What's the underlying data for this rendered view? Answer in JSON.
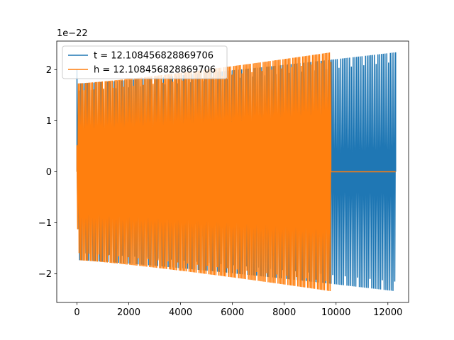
{
  "chart_data": {
    "type": "line",
    "title": "",
    "xlabel": "",
    "ylabel": "",
    "y_offset_text": "1e−22",
    "xlim": [
      -780,
      12800
    ],
    "ylim": [
      -2.56,
      2.56
    ],
    "x_ticks": [
      0,
      2000,
      4000,
      6000,
      8000,
      10000,
      12000
    ],
    "x_tick_labels": [
      "0",
      "2000",
      "4000",
      "6000",
      "8000",
      "10000",
      "12000"
    ],
    "y_ticks": [
      -2,
      -1,
      0,
      1,
      2
    ],
    "y_tick_labels": [
      "−2",
      "−1",
      "0",
      "1",
      "2"
    ],
    "grid": false,
    "legend_position": "upper left",
    "series": [
      {
        "name": "t = 12.108456828869706",
        "color": "#1f77b4",
        "description_of_shape": "dense oscillation (chirp) with envelope growing from about 1.73 to 2.34 (x1e-22) over x = 0 to 12300",
        "x_start": 0,
        "x_end": 12300,
        "amplitude_start": 1.73,
        "amplitude_end": 2.34,
        "initial_spike": 2.0
      },
      {
        "name": "h = 12.108456828869706",
        "color": "#ff7f0e",
        "description_of_shape": "dense oscillation with envelope growing from about 1.73 to 2.34 (x1e-22) over x = 0 to 9800, then flat zero until x = 12300",
        "x_start": 0,
        "x_end": 9800,
        "zero_until": 12300,
        "amplitude_start": 1.73,
        "amplitude_end": 2.34
      }
    ]
  }
}
